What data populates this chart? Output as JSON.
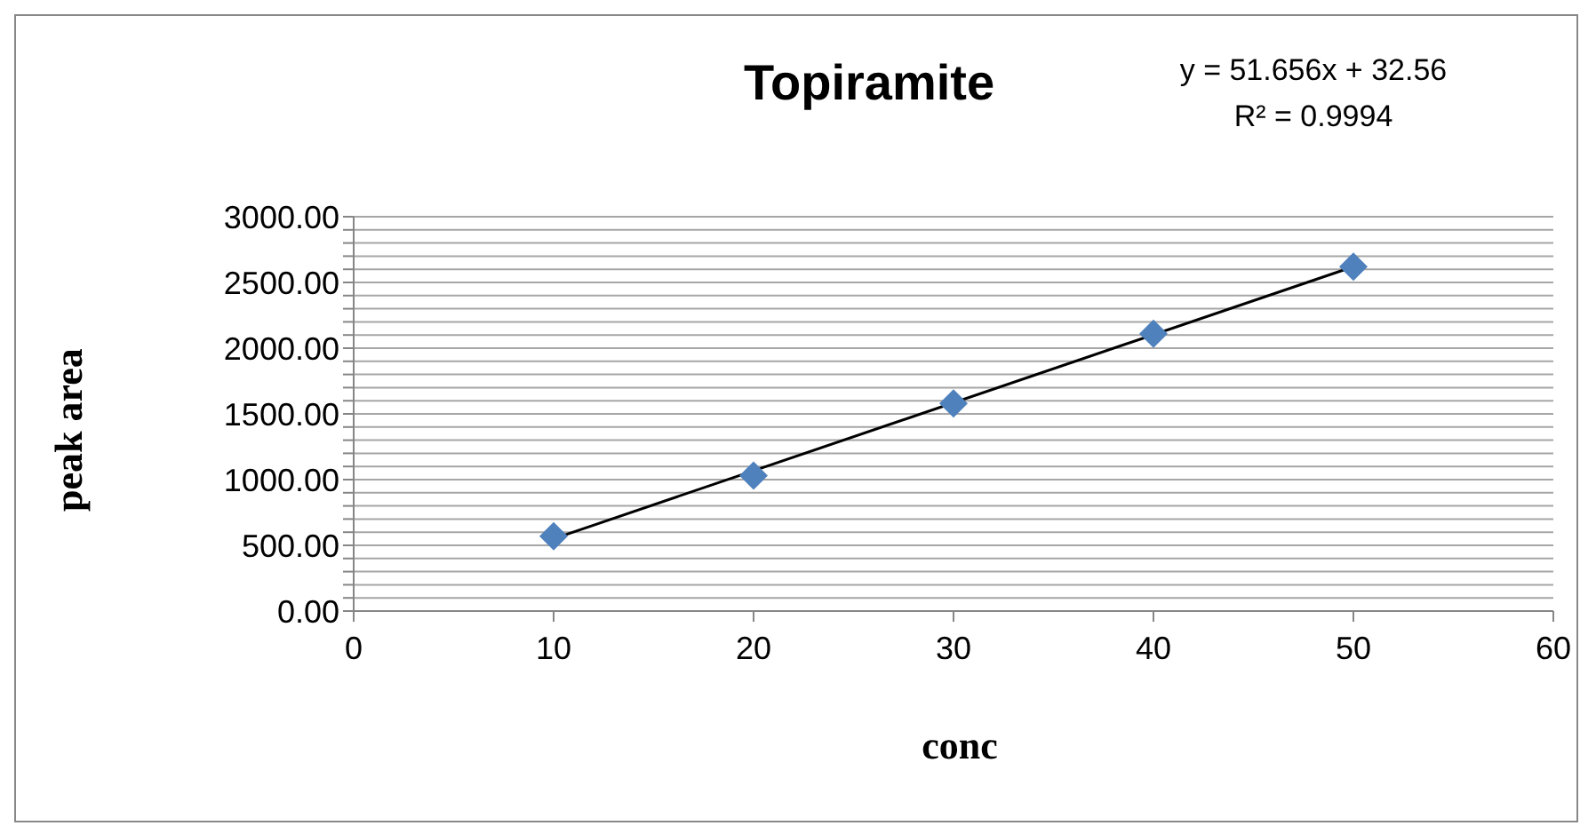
{
  "chart_data": {
    "type": "scatter",
    "title": "Topiramite",
    "xlabel": "conc",
    "ylabel": "peak area",
    "annotations": [
      "y = 51.656x + 32.56",
      "R² = 0.9994"
    ],
    "x": [
      10,
      20,
      30,
      40,
      50
    ],
    "series": [
      {
        "color": "#4f81bd",
        "values": [
          570,
          1030,
          1580,
          2110,
          2620
        ],
        "marker": "diamond"
      },
      {
        "type": "line",
        "color": "#000000",
        "x": [
          10,
          50
        ],
        "values": [
          550,
          2620
        ],
        "marker": "none",
        "line_style": "solid"
      }
    ],
    "xlim": [
      0,
      60
    ],
    "xticks": [
      0,
      10,
      20,
      30,
      40,
      50,
      60
    ],
    "ylim": [
      0,
      3000
    ],
    "yticks": [
      {
        "value": 0,
        "label": "0.00"
      },
      {
        "value": 100,
        "label": null
      },
      {
        "value": 200,
        "label": null
      },
      {
        "value": 300,
        "label": null
      },
      {
        "value": 400,
        "label": null
      },
      {
        "value": 500,
        "label": "500.00"
      },
      {
        "value": 600,
        "label": null
      },
      {
        "value": 700,
        "label": null
      },
      {
        "value": 800,
        "label": null
      },
      {
        "value": 900,
        "label": null
      },
      {
        "value": 1000,
        "label": "1000.00"
      },
      {
        "value": 1100,
        "label": null
      },
      {
        "value": 1200,
        "label": null
      },
      {
        "value": 1300,
        "label": null
      },
      {
        "value": 1400,
        "label": null
      },
      {
        "value": 1500,
        "label": "1500.00"
      },
      {
        "value": 1600,
        "label": null
      },
      {
        "value": 1700,
        "label": null
      },
      {
        "value": 1800,
        "label": null
      },
      {
        "value": 1900,
        "label": null
      },
      {
        "value": 2000,
        "label": "2000.00"
      },
      {
        "value": 2100,
        "label": null
      },
      {
        "value": 2200,
        "label": null
      },
      {
        "value": 2300,
        "label": null
      },
      {
        "value": 2400,
        "label": null
      },
      {
        "value": 2500,
        "label": "2500.00"
      },
      {
        "value": 2600,
        "label": null
      },
      {
        "value": 2700,
        "label": null
      },
      {
        "value": 2800,
        "label": null
      },
      {
        "value": 2900,
        "label": null
      },
      {
        "value": 3000,
        "label": "3000.00"
      }
    ],
    "grid": "y",
    "legend": false
  }
}
